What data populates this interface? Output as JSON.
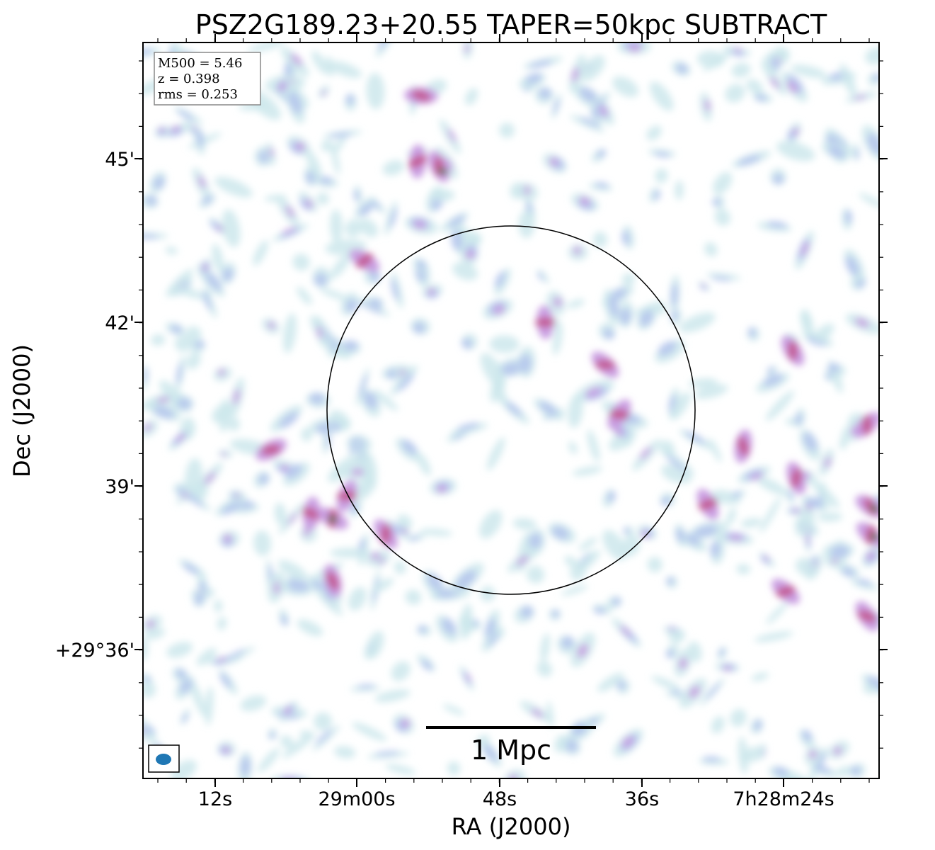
{
  "chart_data": {
    "type": "heatmap",
    "title": "PSZ2G189.23+20.55 TAPER=50kpc SUBTRACT",
    "xlabel": "RA (J2000)",
    "ylabel": "Dec (J2000)",
    "x_ticks": [
      "12s",
      "29m00s",
      "48s",
      "36s",
      "7h28m24s"
    ],
    "y_ticks": [
      "45'",
      "42'",
      "39'",
      "+29°36'"
    ],
    "info_box": [
      "M500 = 5.46",
      "z = 0.398",
      "rms = 0.253"
    ],
    "scale_bar_label": "1 Mpc",
    "colormap": [
      "#ffffff",
      "#cde8ec",
      "#b3c2ee",
      "#c79ae0",
      "#c2578d",
      "#3f7a34"
    ],
    "circle_color": "#000000",
    "beam_color": "#1f77b4"
  }
}
